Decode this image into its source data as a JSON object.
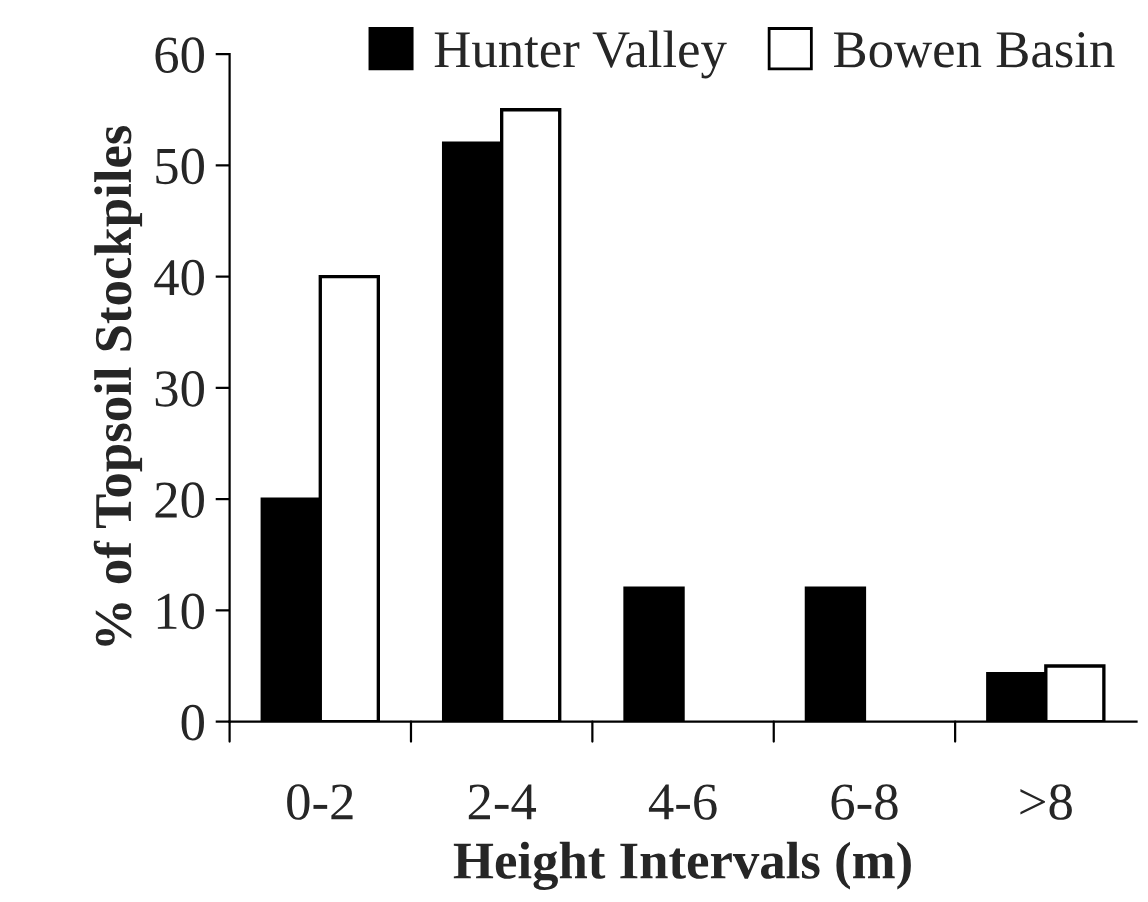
{
  "chart_data": {
    "type": "bar",
    "xlabel": "Height Intervals (m)",
    "ylabel": "% of Topsoil Stockpiles",
    "categories": [
      "0-2",
      "2-4",
      "4-6",
      "6-8",
      ">8"
    ],
    "series": [
      {
        "name": "Hunter Valley",
        "color": "#000000",
        "values": [
          20,
          52,
          12,
          12,
          4.3
        ]
      },
      {
        "name": "Bowen Basin",
        "color": "#ffffff",
        "values": [
          40,
          55,
          0,
          0,
          5
        ]
      }
    ],
    "ylim": [
      0,
      60
    ],
    "yticks": [
      0,
      10,
      20,
      30,
      40,
      50,
      60
    ],
    "grid": false,
    "legend": "top right"
  }
}
